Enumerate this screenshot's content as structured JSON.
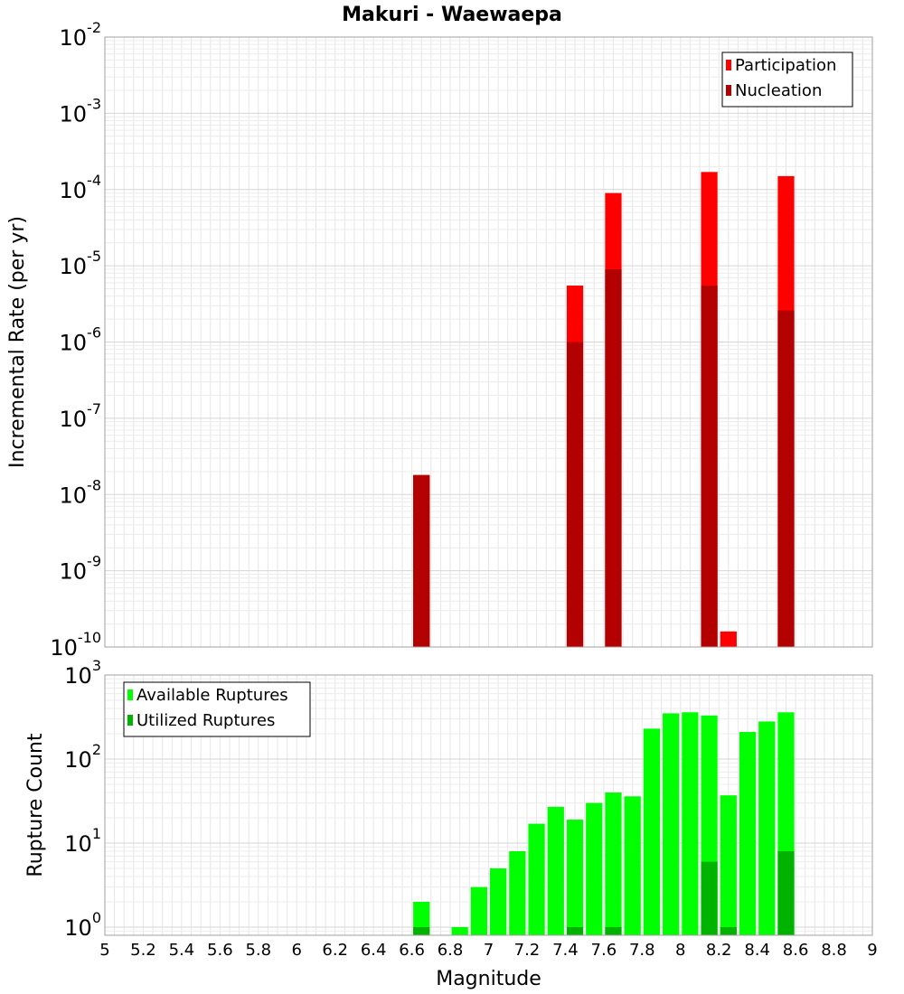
{
  "chart_data": [
    {
      "type": "bar",
      "title": "Makuri - Waewaepa",
      "xlabel": "",
      "ylabel": "Incremental Rate (per yr)",
      "yscale": "log",
      "ylim": [
        1e-10,
        0.01
      ],
      "xlim": [
        5,
        9
      ],
      "y_ticks": [
        {
          "base": "10",
          "exp": "-2",
          "value": 0.01
        },
        {
          "base": "10",
          "exp": "-3",
          "value": 0.001
        },
        {
          "base": "10",
          "exp": "-4",
          "value": 0.0001
        },
        {
          "base": "10",
          "exp": "-5",
          "value": 1e-05
        },
        {
          "base": "10",
          "exp": "-6",
          "value": 1e-06
        },
        {
          "base": "10",
          "exp": "-7",
          "value": 1e-07
        },
        {
          "base": "10",
          "exp": "-8",
          "value": 1e-08
        },
        {
          "base": "10",
          "exp": "-9",
          "value": 1e-09
        },
        {
          "base": "10",
          "exp": "-10",
          "value": 1e-10
        }
      ],
      "legend": {
        "position": "top-right",
        "entries": [
          "Participation",
          "Nucleation"
        ]
      },
      "colors": {
        "Participation": "#ff0000",
        "Nucleation": "#b30000"
      },
      "bin_width": 0.1,
      "series": [
        {
          "name": "Participation",
          "x": [
            6.65,
            7.45,
            7.65,
            8.15,
            8.25,
            8.55
          ],
          "values": [
            1.8e-08,
            5.5e-06,
            9e-05,
            0.00017,
            1.6e-10,
            0.00015
          ]
        },
        {
          "name": "Nucleation",
          "x": [
            6.65,
            7.45,
            7.65,
            8.15,
            8.55
          ],
          "values": [
            1.8e-08,
            1e-06,
            9e-06,
            5.5e-06,
            2.6e-06
          ]
        }
      ],
      "grid": true
    },
    {
      "type": "bar",
      "title": "",
      "xlabel": "Magnitude",
      "ylabel": "Rupture Count",
      "yscale": "log",
      "ylim": [
        0.8,
        1000
      ],
      "xlim": [
        5,
        9
      ],
      "y_ticks": [
        {
          "base": "10",
          "exp": "3",
          "value": 1000
        },
        {
          "base": "10",
          "exp": "2",
          "value": 100
        },
        {
          "base": "10",
          "exp": "1",
          "value": 10
        },
        {
          "base": "10",
          "exp": "0",
          "value": 1
        }
      ],
      "x_ticks": [
        "5",
        "5.2",
        "5.4",
        "5.6",
        "5.8",
        "6",
        "6.2",
        "6.4",
        "6.6",
        "6.8",
        "7",
        "7.2",
        "7.4",
        "7.6",
        "7.8",
        "8",
        "8.2",
        "8.4",
        "8.6",
        "8.8",
        "9"
      ],
      "legend": {
        "position": "top-left",
        "entries": [
          "Available Ruptures",
          "Utilized Ruptures"
        ]
      },
      "colors": {
        "Available Ruptures": "#00ff00",
        "Utilized Ruptures": "#00b300"
      },
      "bin_width": 0.1,
      "series": [
        {
          "name": "Available Ruptures",
          "x": [
            6.65,
            6.85,
            6.95,
            7.05,
            7.15,
            7.25,
            7.35,
            7.45,
            7.55,
            7.65,
            7.75,
            7.85,
            7.95,
            8.05,
            8.15,
            8.25,
            8.35,
            8.45,
            8.55
          ],
          "values": [
            2,
            1,
            3,
            5,
            8,
            17,
            27,
            19,
            30,
            40,
            36,
            230,
            350,
            360,
            330,
            37,
            210,
            280,
            360
          ]
        },
        {
          "name": "Utilized Ruptures",
          "x": [
            6.65,
            7.45,
            7.65,
            8.15,
            8.25,
            8.55
          ],
          "values": [
            1,
            1,
            1,
            6,
            1,
            8
          ]
        }
      ],
      "grid": true
    }
  ]
}
